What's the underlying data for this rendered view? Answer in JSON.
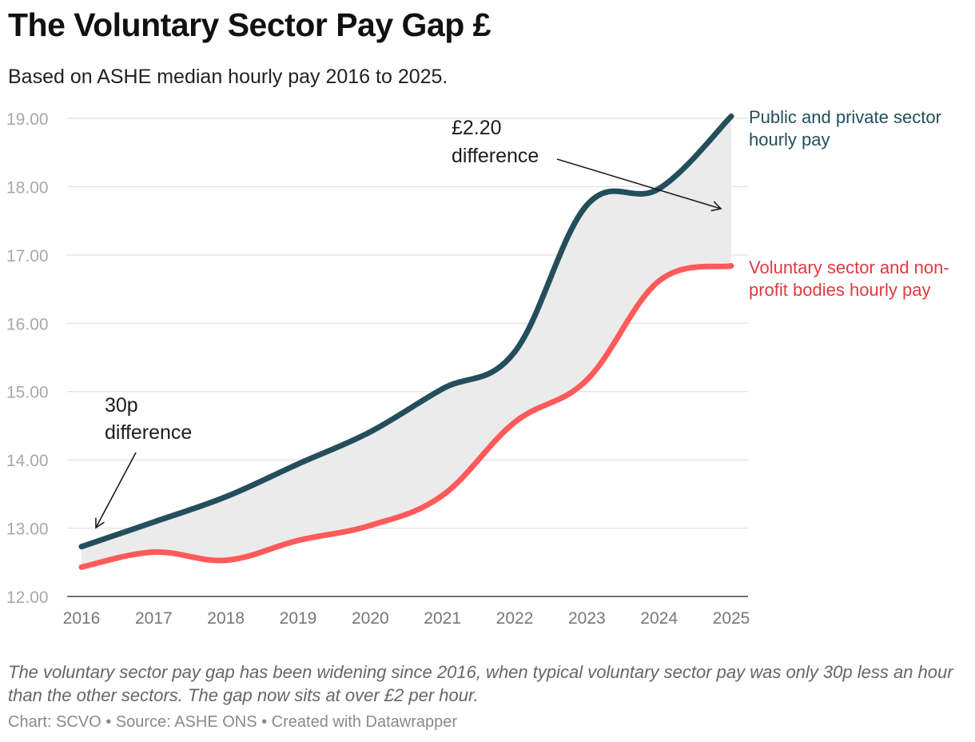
{
  "title": "The Voluntary Sector Pay Gap £",
  "subtitle": "Based on ASHE median hourly pay 2016 to 2025.",
  "note": "The voluntary sector pay gap has been widening since 2016, when typical voluntary sector pay was only 30p less an hour than the other sectors. The gap now sits at over £2 per hour.",
  "source": "Chart: SCVO • Source: ASHE ONS • Created with Datawrapper",
  "colors": {
    "public": "#234e5c",
    "voluntary": "#ff5a5a",
    "voluntary_label": "#e03a3e",
    "gap_fill": "#ebebeb",
    "gridline": "#e0e0e0"
  },
  "chart_data": {
    "type": "line",
    "x": [
      "2016",
      "2017",
      "2018",
      "2019",
      "2020",
      "2021",
      "2022",
      "2023",
      "2024",
      "2025"
    ],
    "ylim": [
      12.0,
      19.0
    ],
    "yticks": [
      "12.00",
      "13.00",
      "14.00",
      "15.00",
      "16.00",
      "17.00",
      "18.00",
      "19.00"
    ],
    "grid": true,
    "series": [
      {
        "key": "public",
        "label_line1": "Public and private sector",
        "label_line2": "hourly pay",
        "values": [
          12.73,
          13.09,
          13.46,
          13.94,
          14.41,
          15.04,
          15.58,
          17.73,
          17.97,
          19.03
        ]
      },
      {
        "key": "voluntary",
        "label_line1": "Voluntary sector and non-",
        "label_line2": "profit bodies hourly pay",
        "values": [
          12.43,
          12.65,
          12.53,
          12.82,
          13.04,
          13.48,
          14.55,
          15.17,
          16.62,
          16.84
        ]
      }
    ],
    "annotations": [
      {
        "line1": "30p",
        "line2": "difference"
      },
      {
        "line1": "£2.20",
        "line2": "difference"
      }
    ]
  }
}
